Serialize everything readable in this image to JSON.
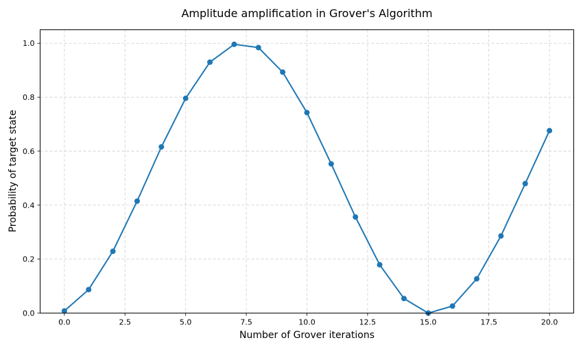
{
  "chart_data": {
    "type": "line",
    "title": "Amplitude amplification in Grover's Algorithm",
    "xlabel": "Number of Grover iterations",
    "ylabel": "Probability of target state",
    "xlim": [
      -1.0,
      21.0
    ],
    "ylim": [
      0.0,
      1.05
    ],
    "x_ticks": [
      0.0,
      2.5,
      5.0,
      7.5,
      10.0,
      12.5,
      15.0,
      17.5,
      20.0
    ],
    "x_tick_labels": [
      "0.0",
      "2.5",
      "5.0",
      "7.5",
      "10.0",
      "12.5",
      "15.0",
      "17.5",
      "20.0"
    ],
    "y_ticks": [
      0.0,
      0.2,
      0.4,
      0.6,
      0.8,
      1.0
    ],
    "y_tick_labels": [
      "0.0",
      "0.2",
      "0.4",
      "0.6",
      "0.8",
      "1.0"
    ],
    "grid": true,
    "grid_style": "dashed",
    "line_color": "#1f77b4",
    "marker": "circle",
    "series": [
      {
        "x": [
          0,
          1,
          2,
          3,
          4,
          5,
          6,
          7,
          8,
          9,
          10,
          11,
          12,
          13,
          14,
          15,
          16,
          17,
          18,
          19,
          20
        ],
        "y": [
          0.008,
          0.087,
          0.229,
          0.415,
          0.616,
          0.796,
          0.93,
          0.996,
          0.984,
          0.893,
          0.743,
          0.553,
          0.356,
          0.179,
          0.054,
          0.0,
          0.026,
          0.127,
          0.286,
          0.48,
          0.676
        ]
      }
    ]
  }
}
